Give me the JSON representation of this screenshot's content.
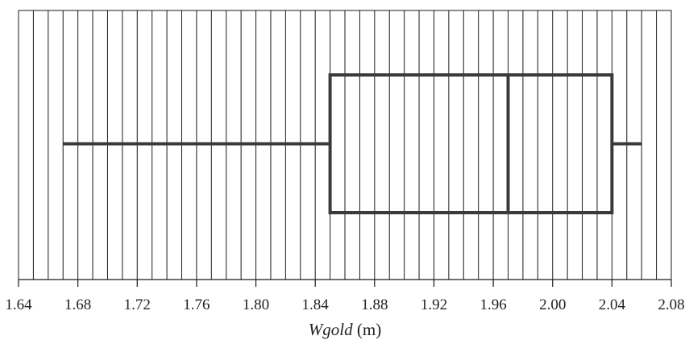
{
  "chart_data": {
    "type": "boxplot",
    "xlabel_var": "Wgold",
    "xlabel_unit": " (m)",
    "xlim": [
      1.64,
      2.08
    ],
    "ticks": [
      {
        "value": 1.64,
        "label": "1.64"
      },
      {
        "value": 1.68,
        "label": "1.68"
      },
      {
        "value": 1.72,
        "label": "1.72"
      },
      {
        "value": 1.76,
        "label": "1.76"
      },
      {
        "value": 1.8,
        "label": "1.80"
      },
      {
        "value": 1.84,
        "label": "1.84"
      },
      {
        "value": 1.88,
        "label": "1.88"
      },
      {
        "value": 1.92,
        "label": "1.92"
      },
      {
        "value": 1.96,
        "label": "1.96"
      },
      {
        "value": 2.0,
        "label": "2.00"
      },
      {
        "value": 2.04,
        "label": "2.04"
      },
      {
        "value": 2.08,
        "label": "2.08"
      }
    ],
    "grid_step": 0.01,
    "grid": true,
    "box": {
      "min": 1.67,
      "q1": 1.85,
      "median": 1.97,
      "q3": 2.04,
      "max": 2.06
    }
  }
}
